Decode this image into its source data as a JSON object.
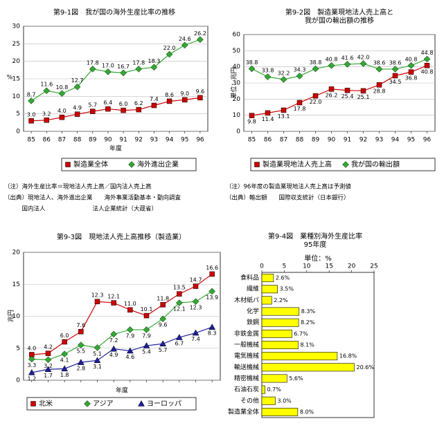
{
  "chart_data": [
    {
      "type": "line",
      "title": [
        "第9-1図　我が国の海外生産比率の推移"
      ],
      "y_label": "%",
      "x_label": "年度",
      "categories": [
        "85",
        "86",
        "87",
        "88",
        "89",
        "90",
        "91",
        "92",
        "93",
        "94",
        "95",
        "96"
      ],
      "ylim": [
        0,
        30
      ],
      "yticks": [
        0,
        5,
        10,
        15,
        20,
        25,
        30
      ],
      "grid": true,
      "legend": "bottom",
      "series": [
        {
          "name": "製造業全体",
          "color": "#cc0000",
          "marker": "square",
          "values": [
            3.0,
            3.2,
            4.0,
            4.9,
            5.7,
            6.4,
            6.0,
            6.2,
            7.4,
            8.6,
            9.0,
            9.6
          ],
          "value_labels": [
            "3.0",
            "3.2",
            "4.0",
            "4.9",
            "5.7",
            "6.4",
            "6.0",
            "6.2",
            "7.4",
            "8.6",
            "9.0",
            "9.6"
          ]
        },
        {
          "name": "海外進出企業",
          "color": "#33aa33",
          "marker": "diamond",
          "values": [
            8.7,
            11.6,
            10.8,
            12.7,
            17.8,
            17.0,
            16.7,
            17.8,
            18.3,
            22.0,
            24.6,
            26.2
          ],
          "value_labels": [
            "8.7",
            "11.6",
            "10.8",
            "12.7",
            "17.8",
            "17.0",
            "16.7",
            "17.8",
            "18.3",
            "22.0",
            "24.6",
            "26.2"
          ]
        }
      ]
    },
    {
      "type": "line",
      "title": [
        "第9-2図　製造業現地法人売上高と",
        "我が国の輸出額の推移"
      ],
      "y_label": "単位：兆円",
      "categories": [
        "85",
        "86",
        "87",
        "88",
        "89",
        "90",
        "91",
        "92",
        "93",
        "94",
        "95",
        "96"
      ],
      "ylim": [
        0,
        60
      ],
      "yticks": [
        0,
        10,
        20,
        30,
        40,
        50,
        60
      ],
      "grid": true,
      "legend": "bottom",
      "series": [
        {
          "name": "製造業現地法人売上高",
          "color": "#cc0000",
          "marker": "square",
          "values": [
            9.8,
            11.4,
            13.1,
            17.8,
            22.0,
            26.2,
            25.4,
            25.1,
            28.8,
            34.5,
            36.8,
            40.8
          ],
          "value_labels": [
            "9.8",
            "11.4",
            "13.1",
            "17.8",
            "22.0",
            "26.2",
            "25.4",
            "25.1",
            "28.8",
            "34.5",
            "36.8",
            "40.8"
          ]
        },
        {
          "name": "我が国の輸出額",
          "color": "#33aa33",
          "marker": "diamond",
          "values": [
            38.8,
            33.8,
            32.2,
            34.3,
            38.8,
            40.8,
            41.6,
            42.0,
            38.6,
            38.6,
            40.8,
            44.8
          ],
          "value_labels": [
            "38.8",
            "33.8",
            "32.2",
            "34.3",
            "38.8",
            "40.8",
            "41.6",
            "42.0",
            "38.6",
            "38.6",
            "40.8",
            "44.8"
          ]
        }
      ]
    },
    {
      "type": "line",
      "title": [
        "第9-3図　現地法人売上高推移（製造業）"
      ],
      "y_label": "兆円",
      "x_label": "年度",
      "categories": [
        null,
        null,
        null,
        null,
        null,
        null,
        null,
        null,
        null,
        null,
        null,
        null
      ],
      "ylim": [
        0,
        20
      ],
      "yticks": [
        0,
        5,
        10,
        15,
        20
      ],
      "grid": true,
      "legend": "bottom",
      "series": [
        {
          "name": "北米",
          "color": "#cc0000",
          "marker": "square",
          "values": [
            4.0,
            4.2,
            6.0,
            7.6,
            12.3,
            12.1,
            11.0,
            10.1,
            11.8,
            13.5,
            14.7,
            16.6
          ],
          "value_labels": [
            "4.0",
            "4.2",
            "6.0",
            "7.6",
            "12.3",
            "12.1",
            "11.0",
            "10.1",
            "11.8",
            "13.5",
            "14.7",
            "16.6"
          ]
        },
        {
          "name": "アジア",
          "color": "#33aa33",
          "marker": "diamond",
          "values": [
            3.3,
            3.2,
            4.1,
            5.5,
            5.1,
            7.2,
            7.9,
            7.9,
            9.6,
            12.1,
            12.3,
            13.9
          ],
          "value_labels": [
            "3.3",
            "3.2",
            "4.1",
            "5.5",
            "5.1",
            "7.2",
            "7.9",
            "7.9",
            "9.6",
            "12.1",
            "12.3",
            "13.9"
          ]
        },
        {
          "name": "ヨーロッパ",
          "color": "#1f1f99",
          "marker": "triangle",
          "values": [
            1.2,
            1.7,
            1.8,
            2.8,
            3.1,
            4.9,
            4.6,
            5.4,
            5.7,
            6.7,
            7.4,
            8.3
          ],
          "value_labels": [
            "1.2",
            "1.7",
            "1.8",
            "2.8",
            "3.1",
            "4.9",
            "4.6",
            "5.4",
            "5.7",
            "6.7",
            "7.4",
            "8.3"
          ]
        }
      ]
    },
    {
      "type": "hbar",
      "title": [
        "第9-4図　業種別海外生産比率",
        "95年度"
      ],
      "unit_label": "単位：%",
      "categories": [
        "食料品",
        "繊維",
        "木材紙パ",
        "化学",
        "鉄鋼",
        "非鉄金属",
        "一般機械",
        "電気機械",
        "輸送機械",
        "精密機械",
        "石油石炭",
        "その他",
        "製造業全体"
      ],
      "values": [
        2.6,
        3.5,
        2.2,
        8.3,
        8.2,
        6.7,
        8.1,
        16.8,
        20.6,
        5.6,
        0.7,
        3.0,
        8.0
      ],
      "value_labels": [
        "2.6%",
        "3.5%",
        "2.2%",
        "8.3%",
        "8.2%",
        "6.7%",
        "8.1%",
        "16.8%",
        "20.6%",
        "5.6%",
        "0.7%",
        "3.0%",
        "8.0%"
      ],
      "xlim": [
        0,
        25
      ],
      "xticks": [
        0,
        5,
        10,
        15,
        20,
        25
      ],
      "color": "#ffff00"
    }
  ],
  "notes": [
    [
      "（注）海外生産比率＝現地法人売上高／国内法人売上高",
      "（出典）現地法人、海外進出企業　　海外事業活動基本・動向調査",
      "　　　国内法人　　　　　　　　法人企業統計（大蔵省）"
    ],
    [
      "（注）96年度の製造業現地法人売上高は予測値",
      "（出典）輸出額　　国際収支統計（日本銀行）"
    ]
  ]
}
